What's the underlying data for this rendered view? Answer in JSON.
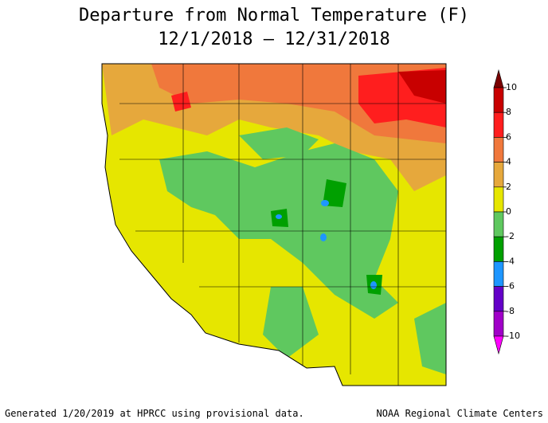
{
  "title": [
    "Departure from Normal Temperature (F)",
    "12/1/2018 – 12/31/2018"
  ],
  "colorbar": {
    "ticks": [
      10,
      8,
      6,
      4,
      2,
      0,
      -2,
      -4,
      -6,
      -8,
      -10
    ],
    "colors": [
      "#7a0000",
      "#c80000",
      "#ff1e1e",
      "#f0783c",
      "#e6a83c",
      "#e6e600",
      "#5fc85f",
      "#00a000",
      "#1e96ff",
      "#6400c8",
      "#a000c8",
      "#ff00ff"
    ]
  },
  "footer": {
    "left": "Generated 1/20/2019 at HPRCC using provisional data.",
    "right": "NOAA Regional Climate Centers"
  }
}
